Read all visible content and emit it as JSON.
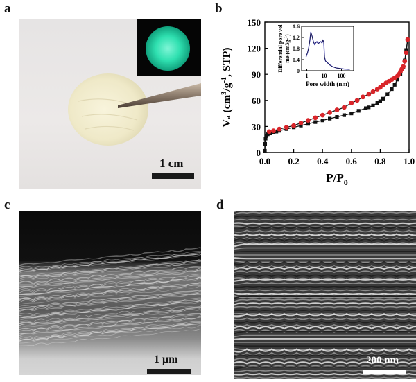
{
  "panels": {
    "a": {
      "letter": "a",
      "scale_bar": "1 cm",
      "inset_color": "#2fe0b0",
      "disk_color": "#f2eed2"
    },
    "b": {
      "letter": "b",
      "xlabel": "P/P0",
      "ylabel": "Va (cm3/g-1, STP)",
      "inset_ylabel": "Differential pore volume (cm3g-1)",
      "inset_xlabel": "Pore width (nm)"
    },
    "c": {
      "letter": "c",
      "scale_bar": "1 μm"
    },
    "d": {
      "letter": "d",
      "scale_bar": "200 nm"
    }
  },
  "chart_data": [
    {
      "type": "line",
      "xlabel": "P/P0",
      "ylabel": "Va (cm3/g-1, STP)",
      "xlim": [
        0.0,
        1.0
      ],
      "ylim": [
        0,
        150
      ],
      "xticks": [
        "0.0",
        "0.2",
        "0.4",
        "0.6",
        "0.8",
        "1.0"
      ],
      "yticks": [
        "0",
        "30",
        "60",
        "90",
        "120",
        "150"
      ],
      "series": [
        {
          "marker": "square",
          "color": "#111111",
          "x": [
            0.0,
            0.002,
            0.005,
            0.01,
            0.02,
            0.04,
            0.06,
            0.08,
            0.1,
            0.15,
            0.2,
            0.25,
            0.3,
            0.35,
            0.4,
            0.45,
            0.5,
            0.55,
            0.6,
            0.65,
            0.7,
            0.72,
            0.75,
            0.78,
            0.8,
            0.82,
            0.85,
            0.88,
            0.9,
            0.92,
            0.94,
            0.96,
            0.97,
            0.98,
            0.99
          ],
          "y": [
            2,
            10,
            16,
            19,
            21,
            22,
            23,
            24,
            25,
            27,
            29,
            31,
            33,
            35,
            37,
            39,
            41,
            43,
            45,
            48,
            51,
            52,
            54,
            57,
            59,
            62,
            67,
            73,
            78,
            84,
            90,
            98,
            106,
            118,
            130
          ]
        },
        {
          "marker": "circle",
          "color": "#d9252a",
          "x": [
            0.99,
            0.98,
            0.97,
            0.96,
            0.95,
            0.94,
            0.93,
            0.92,
            0.9,
            0.88,
            0.86,
            0.84,
            0.82,
            0.8,
            0.78,
            0.75,
            0.72,
            0.68,
            0.64,
            0.6,
            0.55,
            0.5,
            0.45,
            0.4,
            0.35,
            0.3,
            0.25,
            0.2,
            0.15,
            0.1,
            0.06,
            0.03
          ],
          "y": [
            130,
            115,
            105,
            99,
            96,
            93,
            90,
            88,
            86,
            84,
            82,
            80,
            78,
            75,
            73,
            70,
            67,
            64,
            60,
            57,
            52,
            49,
            46,
            43,
            40,
            37,
            34,
            31,
            29,
            27,
            25,
            24
          ]
        }
      ]
    },
    {
      "type": "line",
      "xlabel": "Pore width (nm)",
      "ylabel": "Differential pore volume (cm3g-1)",
      "xscale": "log",
      "xlim": [
        0.5,
        500
      ],
      "ylim": [
        0,
        1.6
      ],
      "xticks": [
        "1",
        "10",
        "100"
      ],
      "yticks": [
        "0",
        "0.4",
        "0.8",
        "1.2",
        "1.6"
      ],
      "series": [
        {
          "color": "#2f2fb0",
          "x": [
            0.9,
            1.1,
            1.3,
            1.5,
            1.7,
            2.0,
            2.4,
            2.8,
            3.2,
            3.8,
            4.5,
            5.5,
            6.5,
            7.5,
            8.5,
            9.5,
            10.5,
            12,
            15,
            20,
            30,
            50,
            80,
            150,
            300
          ],
          "y": [
            0.5,
            0.65,
            0.85,
            1.1,
            1.4,
            1.25,
            1.05,
            0.95,
            1.0,
            1.05,
            0.98,
            1.02,
            1.05,
            1.0,
            1.1,
            1.05,
            0.5,
            0.35,
            0.3,
            0.22,
            0.15,
            0.1,
            0.08,
            0.06,
            0.05
          ]
        }
      ]
    }
  ]
}
